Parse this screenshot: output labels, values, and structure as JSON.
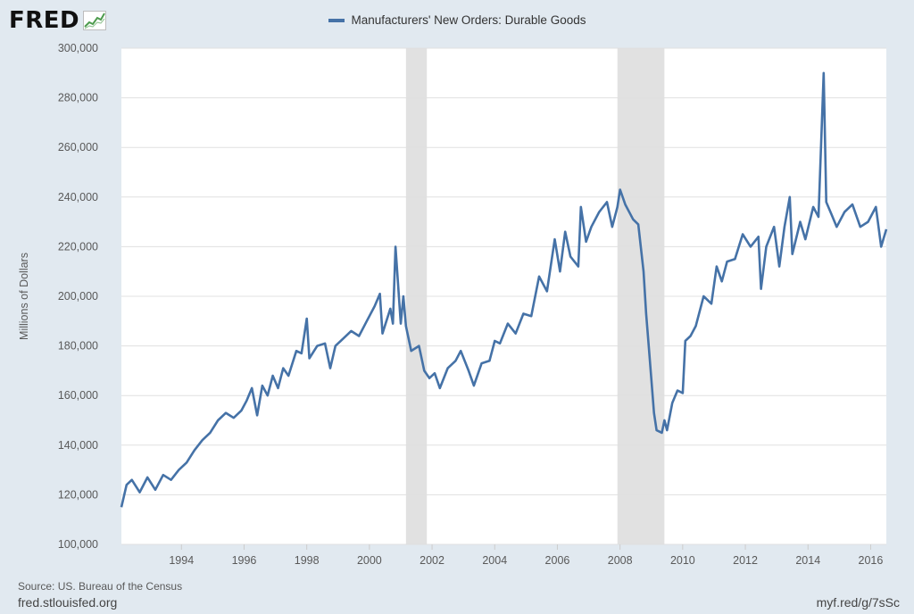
{
  "header": {
    "logo_text": "FRED",
    "logo_icon": "trend-chart-icon"
  },
  "legend": {
    "label": "Manufacturers' New Orders: Durable Goods",
    "color": "#4572a7"
  },
  "footer": {
    "source": "Source: US. Bureau of the Census",
    "site": "fred.stlouisfed.org",
    "short_link": "myf.red/g/7sSc"
  },
  "chart_data": {
    "type": "line",
    "title": "",
    "ylabel": "Millions of Dollars",
    "xlabel": "",
    "ylim": [
      100000,
      300000
    ],
    "xlim": [
      "1992-02",
      "2016-07"
    ],
    "y_ticks": [
      "100,000",
      "120,000",
      "140,000",
      "160,000",
      "180,000",
      "200,000",
      "220,000",
      "240,000",
      "260,000",
      "280,000",
      "300,000"
    ],
    "x_ticks": [
      "1994",
      "1996",
      "1998",
      "2000",
      "2002",
      "2004",
      "2006",
      "2008",
      "2010",
      "2012",
      "2014",
      "2016"
    ],
    "grid": true,
    "legend_position": "top-center",
    "colors": {
      "line": "#4572a7",
      "recession": "#e1e1e1",
      "background": "#e1e9f0",
      "plot": "#ffffff",
      "grid": "#e0e0e0"
    },
    "recessions": [
      {
        "start": "2001-03",
        "end": "2001-11"
      },
      {
        "start": "2007-12",
        "end": "2009-06"
      }
    ],
    "series": [
      {
        "name": "Manufacturers' New Orders: Durable Goods",
        "points": [
          [
            "1992-02",
            115000
          ],
          [
            "1992-04",
            124000
          ],
          [
            "1992-06",
            126000
          ],
          [
            "1992-09",
            121000
          ],
          [
            "1992-12",
            127000
          ],
          [
            "1993-03",
            122000
          ],
          [
            "1993-06",
            128000
          ],
          [
            "1993-09",
            126000
          ],
          [
            "1993-12",
            130000
          ],
          [
            "1994-03",
            133000
          ],
          [
            "1994-06",
            138000
          ],
          [
            "1994-09",
            142000
          ],
          [
            "1994-12",
            145000
          ],
          [
            "1995-03",
            150000
          ],
          [
            "1995-06",
            153000
          ],
          [
            "1995-09",
            151000
          ],
          [
            "1995-12",
            154000
          ],
          [
            "1996-02",
            158000
          ],
          [
            "1996-04",
            163000
          ],
          [
            "1996-06",
            152000
          ],
          [
            "1996-08",
            164000
          ],
          [
            "1996-10",
            160000
          ],
          [
            "1996-12",
            168000
          ],
          [
            "1997-02",
            163000
          ],
          [
            "1997-04",
            171000
          ],
          [
            "1997-06",
            168000
          ],
          [
            "1997-09",
            178000
          ],
          [
            "1997-11",
            177000
          ],
          [
            "1998-01",
            191000
          ],
          [
            "1998-02",
            175000
          ],
          [
            "1998-05",
            180000
          ],
          [
            "1998-08",
            181000
          ],
          [
            "1998-10",
            171000
          ],
          [
            "1998-12",
            180000
          ],
          [
            "1999-03",
            183000
          ],
          [
            "1999-06",
            186000
          ],
          [
            "1999-09",
            184000
          ],
          [
            "1999-12",
            190000
          ],
          [
            "2000-03",
            196000
          ],
          [
            "2000-05",
            201000
          ],
          [
            "2000-06",
            185000
          ],
          [
            "2000-09",
            195000
          ],
          [
            "2000-10",
            189000
          ],
          [
            "2000-11",
            220000
          ],
          [
            "2001-01",
            189000
          ],
          [
            "2001-02",
            200000
          ],
          [
            "2001-03",
            188000
          ],
          [
            "2001-05",
            178000
          ],
          [
            "2001-08",
            180000
          ],
          [
            "2001-10",
            170000
          ],
          [
            "2001-12",
            167000
          ],
          [
            "2002-02",
            169000
          ],
          [
            "2002-04",
            163000
          ],
          [
            "2002-07",
            171000
          ],
          [
            "2002-10",
            174000
          ],
          [
            "2002-12",
            178000
          ],
          [
            "2003-03",
            170000
          ],
          [
            "2003-05",
            164000
          ],
          [
            "2003-08",
            173000
          ],
          [
            "2003-11",
            174000
          ],
          [
            "2004-01",
            182000
          ],
          [
            "2004-03",
            181000
          ],
          [
            "2004-06",
            189000
          ],
          [
            "2004-09",
            185000
          ],
          [
            "2004-12",
            193000
          ],
          [
            "2005-03",
            192000
          ],
          [
            "2005-06",
            208000
          ],
          [
            "2005-09",
            202000
          ],
          [
            "2005-12",
            223000
          ],
          [
            "2006-02",
            210000
          ],
          [
            "2006-04",
            226000
          ],
          [
            "2006-06",
            216000
          ],
          [
            "2006-09",
            212000
          ],
          [
            "2006-10",
            236000
          ],
          [
            "2006-12",
            222000
          ],
          [
            "2007-02",
            228000
          ],
          [
            "2007-05",
            234000
          ],
          [
            "2007-08",
            238000
          ],
          [
            "2007-10",
            228000
          ],
          [
            "2007-12",
            236000
          ],
          [
            "2008-01",
            243000
          ],
          [
            "2008-03",
            237000
          ],
          [
            "2008-06",
            231000
          ],
          [
            "2008-08",
            229000
          ],
          [
            "2008-10",
            210000
          ],
          [
            "2008-11",
            193000
          ],
          [
            "2008-12",
            180000
          ],
          [
            "2009-02",
            153000
          ],
          [
            "2009-03",
            146000
          ],
          [
            "2009-05",
            145000
          ],
          [
            "2009-06",
            150000
          ],
          [
            "2009-07",
            146000
          ],
          [
            "2009-09",
            157000
          ],
          [
            "2009-11",
            162000
          ],
          [
            "2010-01",
            161000
          ],
          [
            "2010-02",
            182000
          ],
          [
            "2010-04",
            184000
          ],
          [
            "2010-06",
            188000
          ],
          [
            "2010-09",
            200000
          ],
          [
            "2010-12",
            197000
          ],
          [
            "2011-02",
            212000
          ],
          [
            "2011-04",
            206000
          ],
          [
            "2011-06",
            214000
          ],
          [
            "2011-09",
            215000
          ],
          [
            "2011-12",
            225000
          ],
          [
            "2012-03",
            220000
          ],
          [
            "2012-06",
            224000
          ],
          [
            "2012-07",
            203000
          ],
          [
            "2012-09",
            220000
          ],
          [
            "2012-12",
            228000
          ],
          [
            "2013-02",
            212000
          ],
          [
            "2013-04",
            228000
          ],
          [
            "2013-06",
            240000
          ],
          [
            "2013-07",
            217000
          ],
          [
            "2013-10",
            230000
          ],
          [
            "2013-12",
            223000
          ],
          [
            "2014-03",
            236000
          ],
          [
            "2014-05",
            232000
          ],
          [
            "2014-07",
            290000
          ],
          [
            "2014-08",
            238000
          ],
          [
            "2014-10",
            233000
          ],
          [
            "2014-12",
            228000
          ],
          [
            "2015-03",
            234000
          ],
          [
            "2015-06",
            237000
          ],
          [
            "2015-09",
            228000
          ],
          [
            "2015-12",
            230000
          ],
          [
            "2016-03",
            236000
          ],
          [
            "2016-05",
            220000
          ],
          [
            "2016-07",
            227000
          ]
        ]
      }
    ]
  }
}
